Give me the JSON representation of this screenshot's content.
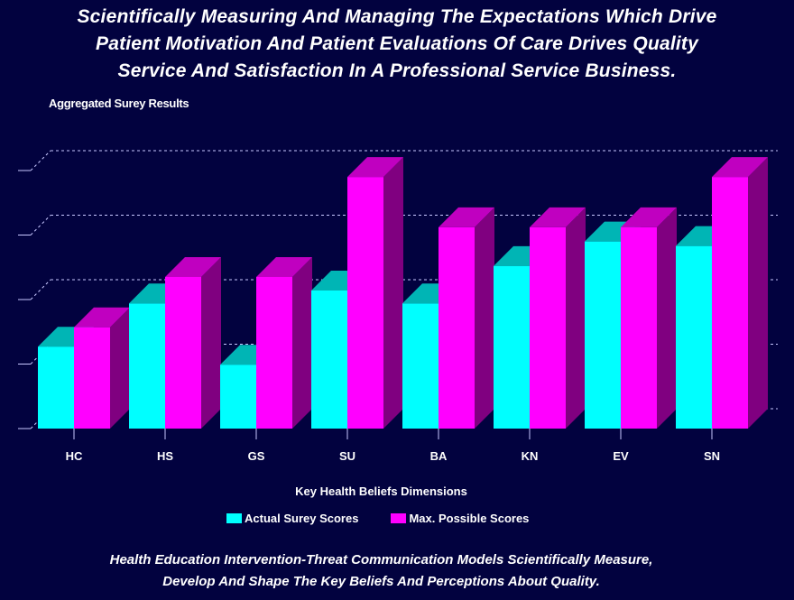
{
  "title_lines": [
    "Scientifically Measuring And Managing The Expectations Which Drive",
    "Patient Motivation And Patient Evaluations Of Care Drives Quality",
    "Service And Satisfaction In A Professional Service Business."
  ],
  "footer_lines": [
    "Health Education Intervention-Threat Communication Models Scientifically Measure,",
    "Develop And Shape The Key Beliefs And Perceptions About Quality."
  ],
  "colors": {
    "background": "#02023f",
    "actual_front": "#00ffff",
    "actual_top": "#00b5b5",
    "max_front": "#ff00ff",
    "max_top": "#c000c0",
    "max_side": "#800080",
    "grid": "#c8c8ff"
  },
  "chart_data": {
    "type": "bar",
    "style": "3d-clustered",
    "title": "Aggregated Surey Results",
    "xlabel": "Key Health Beliefs Dimensions",
    "ylabel": "",
    "categories": [
      "HC",
      "HS",
      "GS",
      "SU",
      "BA",
      "KN",
      "EV",
      "SN"
    ],
    "series": [
      {
        "name": "Actual Surey Scores",
        "values": [
          1.27,
          1.94,
          0.99,
          2.14,
          1.94,
          2.52,
          2.9,
          2.83
        ]
      },
      {
        "name": "Max. Possible Scores",
        "values": [
          1.57,
          2.35,
          2.35,
          3.9,
          3.12,
          3.12,
          3.12,
          3.9
        ]
      }
    ],
    "ylim": [
      0,
      4
    ],
    "y_gridlines": [
      0,
      1,
      2,
      3,
      4
    ],
    "y_tick_labels_visible": false,
    "value_units": "gridline intervals (estimated; axis unlabeled)",
    "grid": true,
    "legend_position": "bottom-center"
  }
}
